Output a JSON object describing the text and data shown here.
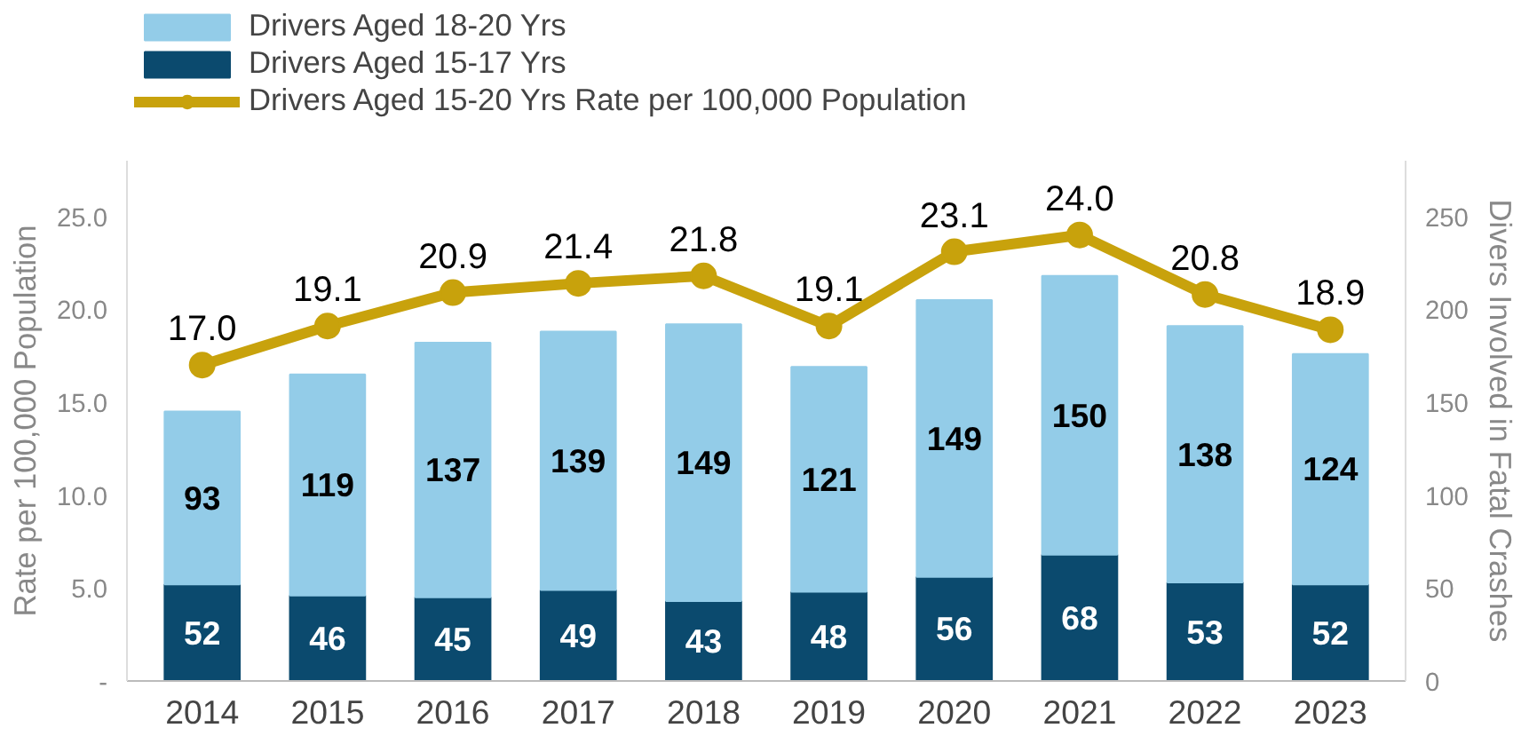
{
  "chart_data": {
    "type": "bar",
    "stacked": true,
    "categories": [
      "2014",
      "2015",
      "2016",
      "2017",
      "2018",
      "2019",
      "2020",
      "2021",
      "2022",
      "2023"
    ],
    "series": [
      {
        "name": "Drivers Aged 15-17 Yrs",
        "color": "#0b4a6e",
        "axis": "y2",
        "values": [
          52,
          46,
          45,
          49,
          43,
          48,
          56,
          68,
          53,
          52
        ]
      },
      {
        "name": "Drivers Aged 18-20 Yrs",
        "color": "#93cce8",
        "axis": "y2",
        "values": [
          93,
          119,
          137,
          139,
          149,
          121,
          149,
          150,
          138,
          124
        ]
      },
      {
        "name": "Drivers Aged 15-20 Yrs Rate per 100,000 Population",
        "type": "line",
        "color": "#c8a20c",
        "marker": "circle",
        "values": [
          17.0,
          19.1,
          20.9,
          21.4,
          21.8,
          19.1,
          23.1,
          24.0,
          20.8,
          18.9
        ],
        "value_labels": [
          "17.0",
          "19.1",
          "20.9",
          "21.4",
          "21.8",
          "19.1",
          "23.1",
          "24.0",
          "20.8",
          "18.9"
        ]
      }
    ],
    "ylabel": "Rate per 100,000 Population",
    "y2label": "Divers Involved in Fatal Crashes",
    "ylim": [
      0,
      28
    ],
    "yticks": [
      {
        "value": 0,
        "label": "-"
      },
      {
        "value": 5,
        "label": "5.0"
      },
      {
        "value": 10,
        "label": "10.0"
      },
      {
        "value": 15,
        "label": "15.0"
      },
      {
        "value": 20,
        "label": "20.0"
      },
      {
        "value": 25,
        "label": "25.0"
      }
    ],
    "y2lim": [
      0,
      280
    ],
    "y2ticks": [
      0,
      50,
      100,
      150,
      200,
      250
    ],
    "data_labels": true,
    "grid": false,
    "legend": "top left"
  }
}
